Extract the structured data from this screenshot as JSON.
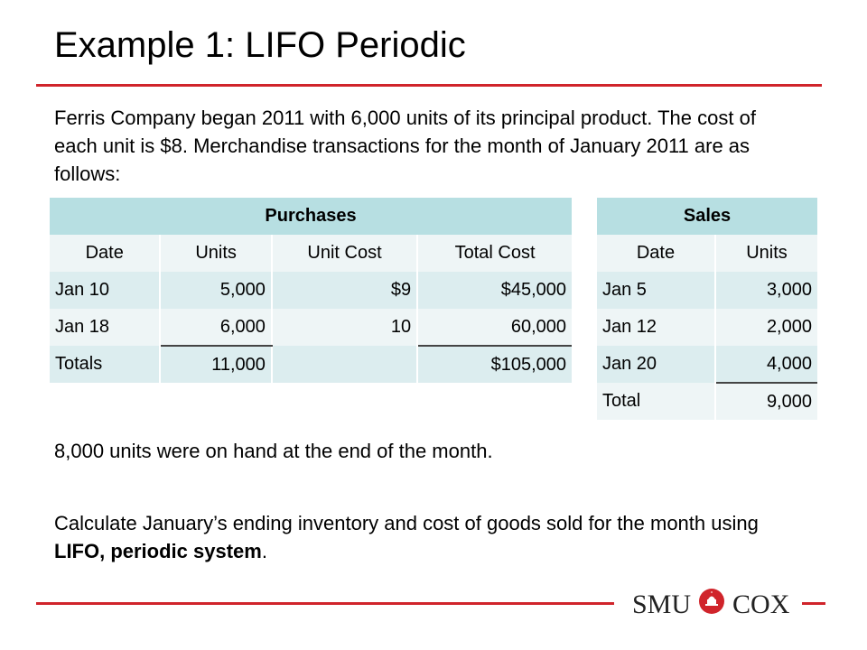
{
  "slide": {
    "title": "Example 1: LIFO Periodic",
    "intro": "Ferris Company began 2011 with 6,000 units of its principal product. The cost of each unit is $8. Merchandise transactions for the month of January 2011 are as follows:",
    "note_on_hand": "8,000 units were on hand at the end of the month.",
    "instruction_prefix": "Calculate January’s ending inventory and cost of goods sold for the month using ",
    "instruction_bold": "LIFO, periodic system",
    "instruction_suffix": "."
  },
  "purchases": {
    "title": "Purchases",
    "headers": [
      "Date",
      "Units",
      "Unit Cost",
      "Total Cost"
    ],
    "rows": [
      {
        "date": "Jan 10",
        "units": "5,000",
        "unit_cost": "$9",
        "total_cost": "$45,000"
      },
      {
        "date": "Jan 18",
        "units": "6,000",
        "unit_cost": "10",
        "total_cost": "60,000"
      },
      {
        "date": "Totals",
        "units": "11,000",
        "unit_cost": "",
        "total_cost": "$105,000"
      }
    ]
  },
  "sales": {
    "title": "Sales",
    "headers": [
      "Date",
      "Units"
    ],
    "rows": [
      {
        "date": "Jan 5",
        "units": "3,000"
      },
      {
        "date": "Jan 12",
        "units": "2,000"
      },
      {
        "date": "Jan 20",
        "units": "4,000"
      },
      {
        "date": "Total",
        "units": "9,000"
      }
    ]
  },
  "logo": {
    "left_text": "SMU",
    "right_text": "COX",
    "seal_icon": "smu-dome-seal-icon",
    "accent_color": "#d0242b"
  }
}
